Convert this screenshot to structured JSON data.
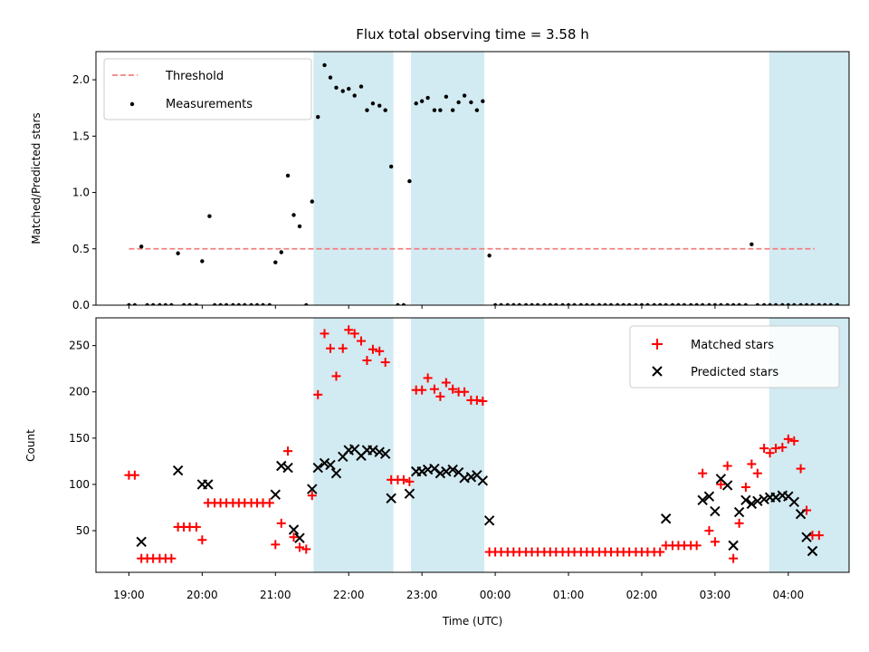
{
  "chart_data": {
    "type": "scatter",
    "title": "Flux total observing time = 3.58 h",
    "xlabel": "Time (UTC)",
    "x_ticks": [
      "19:00",
      "20:00",
      "21:00",
      "22:00",
      "23:00",
      "00:00",
      "01:00",
      "02:00",
      "03:00",
      "04:00"
    ],
    "x_tick_hours": [
      19,
      20,
      21,
      22,
      23,
      24,
      25,
      26,
      27,
      28
    ],
    "xlim_hours": [
      18.55,
      28.83
    ],
    "shaded_intervals_hours": [
      [
        21.52,
        22.61
      ],
      [
        22.85,
        23.85
      ],
      [
        27.74,
        29.26
      ]
    ],
    "colors": {
      "threshold": "#f08080",
      "measurements": "#000000",
      "matched": "#ff0000",
      "predicted": "#000000",
      "shade": "#add8e6"
    },
    "top": {
      "ylabel": "Matched/Predicted stars",
      "ylim": [
        0,
        2.25
      ],
      "yticks": [
        "0.0",
        "0.5",
        "1.0",
        "1.5",
        "2.0"
      ],
      "threshold": {
        "value": 0.5,
        "x_range_hours": [
          19.0,
          28.36
        ]
      },
      "legend": [
        "Threshold",
        "Measurements"
      ],
      "measurements": [
        [
          19.0,
          0.0
        ],
        [
          19.08,
          0.0
        ],
        [
          19.17,
          0.52
        ],
        [
          19.25,
          0.0
        ],
        [
          19.33,
          0.0
        ],
        [
          19.42,
          0.0
        ],
        [
          19.5,
          0.0
        ],
        [
          19.58,
          0.0
        ],
        [
          19.67,
          0.46
        ],
        [
          19.75,
          0.0
        ],
        [
          19.83,
          0.0
        ],
        [
          19.92,
          0.0
        ],
        [
          20.0,
          0.39
        ],
        [
          20.1,
          0.79
        ],
        [
          20.17,
          0.0
        ],
        [
          20.25,
          0.0
        ],
        [
          20.33,
          0.0
        ],
        [
          20.42,
          0.0
        ],
        [
          20.5,
          0.0
        ],
        [
          20.58,
          0.0
        ],
        [
          20.67,
          0.0
        ],
        [
          20.75,
          0.0
        ],
        [
          20.83,
          0.0
        ],
        [
          20.92,
          0.0
        ],
        [
          21.0,
          0.38
        ],
        [
          21.08,
          0.47
        ],
        [
          21.17,
          1.15
        ],
        [
          21.25,
          0.8
        ],
        [
          21.33,
          0.7
        ],
        [
          21.42,
          0.0
        ],
        [
          21.5,
          0.92
        ],
        [
          21.58,
          1.67
        ],
        [
          21.67,
          2.13
        ],
        [
          21.75,
          2.02
        ],
        [
          21.83,
          1.93
        ],
        [
          21.92,
          1.9
        ],
        [
          22.0,
          1.92
        ],
        [
          22.08,
          1.86
        ],
        [
          22.17,
          1.94
        ],
        [
          22.25,
          1.73
        ],
        [
          22.33,
          1.79
        ],
        [
          22.42,
          1.77
        ],
        [
          22.5,
          1.73
        ],
        [
          22.58,
          1.23
        ],
        [
          22.67,
          0.0
        ],
        [
          22.75,
          0.0
        ],
        [
          22.83,
          1.1
        ],
        [
          22.92,
          1.79
        ],
        [
          23.0,
          1.81
        ],
        [
          23.08,
          1.84
        ],
        [
          23.17,
          1.73
        ],
        [
          23.25,
          1.73
        ],
        [
          23.33,
          1.85
        ],
        [
          23.42,
          1.73
        ],
        [
          23.5,
          1.8
        ],
        [
          23.58,
          1.86
        ],
        [
          23.67,
          1.8
        ],
        [
          23.75,
          1.73
        ],
        [
          23.83,
          1.81
        ],
        [
          23.92,
          0.44
        ],
        [
          24.0,
          0.0
        ],
        [
          24.08,
          0.0
        ],
        [
          24.17,
          0.0
        ],
        [
          24.25,
          0.0
        ],
        [
          24.33,
          0.0
        ],
        [
          24.42,
          0.0
        ],
        [
          24.5,
          0.0
        ],
        [
          24.58,
          0.0
        ],
        [
          24.67,
          0.0
        ],
        [
          24.75,
          0.0
        ],
        [
          24.83,
          0.0
        ],
        [
          24.92,
          0.0
        ],
        [
          25.0,
          0.0
        ],
        [
          25.08,
          0.0
        ],
        [
          25.17,
          0.0
        ],
        [
          25.25,
          0.0
        ],
        [
          25.33,
          0.0
        ],
        [
          25.42,
          0.0
        ],
        [
          25.5,
          0.0
        ],
        [
          25.58,
          0.0
        ],
        [
          25.67,
          0.0
        ],
        [
          25.75,
          0.0
        ],
        [
          25.83,
          0.0
        ],
        [
          25.92,
          0.0
        ],
        [
          26.0,
          0.0
        ],
        [
          26.08,
          0.0
        ],
        [
          26.17,
          0.0
        ],
        [
          26.25,
          0.0
        ],
        [
          26.33,
          0.0
        ],
        [
          26.42,
          0.0
        ],
        [
          26.5,
          0.0
        ],
        [
          26.58,
          0.0
        ],
        [
          26.67,
          0.0
        ],
        [
          26.75,
          0.0
        ],
        [
          26.83,
          0.0
        ],
        [
          26.92,
          0.0
        ],
        [
          27.0,
          0.0
        ],
        [
          27.08,
          0.0
        ],
        [
          27.17,
          0.0
        ],
        [
          27.25,
          0.0
        ],
        [
          27.33,
          0.0
        ],
        [
          27.42,
          0.0
        ],
        [
          27.5,
          0.54
        ],
        [
          27.58,
          0.0
        ],
        [
          27.67,
          0.0
        ],
        [
          27.75,
          0.0
        ],
        [
          27.83,
          0.0
        ],
        [
          27.92,
          0.0
        ],
        [
          28.0,
          0.0
        ],
        [
          28.08,
          0.0
        ],
        [
          28.17,
          0.0
        ],
        [
          28.25,
          0.0
        ],
        [
          28.33,
          0.0
        ],
        [
          28.42,
          0.0
        ],
        [
          28.5,
          0.0
        ],
        [
          28.58,
          0.0
        ],
        [
          28.67,
          0.0
        ]
      ]
    },
    "bottom": {
      "ylabel": "Count",
      "ylim": [
        5,
        280
      ],
      "yticks": [
        "50",
        "100",
        "150",
        "200",
        "250"
      ],
      "legend": [
        "Matched stars",
        "Predicted stars"
      ],
      "matched": [
        [
          19.0,
          110
        ],
        [
          19.08,
          110
        ],
        [
          19.17,
          20
        ],
        [
          19.25,
          20
        ],
        [
          19.33,
          20
        ],
        [
          19.42,
          20
        ],
        [
          19.5,
          20
        ],
        [
          19.58,
          20
        ],
        [
          19.67,
          54
        ],
        [
          19.75,
          54
        ],
        [
          19.83,
          54
        ],
        [
          19.92,
          54
        ],
        [
          20.0,
          40
        ],
        [
          20.08,
          80
        ],
        [
          20.17,
          80
        ],
        [
          20.25,
          80
        ],
        [
          20.33,
          80
        ],
        [
          20.42,
          80
        ],
        [
          20.5,
          80
        ],
        [
          20.58,
          80
        ],
        [
          20.67,
          80
        ],
        [
          20.75,
          80
        ],
        [
          20.83,
          80
        ],
        [
          20.92,
          80
        ],
        [
          21.0,
          35
        ],
        [
          21.08,
          58
        ],
        [
          21.17,
          136
        ],
        [
          21.25,
          43
        ],
        [
          21.33,
          32
        ],
        [
          21.42,
          30
        ],
        [
          21.5,
          88
        ],
        [
          21.58,
          197
        ],
        [
          21.67,
          263
        ],
        [
          21.75,
          247
        ],
        [
          21.83,
          217
        ],
        [
          21.92,
          247
        ],
        [
          22.0,
          267
        ],
        [
          22.08,
          263
        ],
        [
          22.17,
          255
        ],
        [
          22.25,
          234
        ],
        [
          22.33,
          246
        ],
        [
          22.42,
          244
        ],
        [
          22.5,
          232
        ],
        [
          22.58,
          105
        ],
        [
          22.67,
          105
        ],
        [
          22.75,
          105
        ],
        [
          22.83,
          103
        ],
        [
          22.92,
          202
        ],
        [
          23.0,
          202
        ],
        [
          23.08,
          215
        ],
        [
          23.17,
          203
        ],
        [
          23.25,
          195
        ],
        [
          23.33,
          210
        ],
        [
          23.42,
          203
        ],
        [
          23.5,
          200
        ],
        [
          23.58,
          200
        ],
        [
          23.67,
          191
        ],
        [
          23.75,
          191
        ],
        [
          23.83,
          190
        ],
        [
          23.92,
          27
        ],
        [
          24.0,
          27
        ],
        [
          24.08,
          27
        ],
        [
          24.17,
          27
        ],
        [
          24.25,
          27
        ],
        [
          24.33,
          27
        ],
        [
          24.42,
          27
        ],
        [
          24.5,
          27
        ],
        [
          24.58,
          27
        ],
        [
          24.67,
          27
        ],
        [
          24.75,
          27
        ],
        [
          24.83,
          27
        ],
        [
          24.92,
          27
        ],
        [
          25.0,
          27
        ],
        [
          25.08,
          27
        ],
        [
          25.17,
          27
        ],
        [
          25.25,
          27
        ],
        [
          25.33,
          27
        ],
        [
          25.42,
          27
        ],
        [
          25.5,
          27
        ],
        [
          25.58,
          27
        ],
        [
          25.67,
          27
        ],
        [
          25.75,
          27
        ],
        [
          25.83,
          27
        ],
        [
          25.92,
          27
        ],
        [
          26.0,
          27
        ],
        [
          26.08,
          27
        ],
        [
          26.17,
          27
        ],
        [
          26.25,
          27
        ],
        [
          26.33,
          34
        ],
        [
          26.42,
          34
        ],
        [
          26.5,
          34
        ],
        [
          26.58,
          34
        ],
        [
          26.67,
          34
        ],
        [
          26.75,
          34
        ],
        [
          26.83,
          112
        ],
        [
          26.92,
          50
        ],
        [
          27.0,
          38
        ],
        [
          27.08,
          100
        ],
        [
          27.17,
          120
        ],
        [
          27.25,
          20
        ],
        [
          27.33,
          58
        ],
        [
          27.42,
          97
        ],
        [
          27.5,
          122
        ],
        [
          27.58,
          112
        ],
        [
          27.67,
          139
        ],
        [
          27.75,
          134
        ],
        [
          27.83,
          139
        ],
        [
          27.92,
          140
        ],
        [
          28.0,
          149
        ],
        [
          28.08,
          147
        ],
        [
          28.17,
          117
        ],
        [
          28.25,
          72
        ],
        [
          28.33,
          45
        ],
        [
          28.42,
          45
        ]
      ],
      "predicted": [
        [
          19.17,
          38
        ],
        [
          19.67,
          115
        ],
        [
          20.0,
          100
        ],
        [
          20.08,
          100
        ],
        [
          21.0,
          89
        ],
        [
          21.08,
          120
        ],
        [
          21.17,
          118
        ],
        [
          21.25,
          51
        ],
        [
          21.33,
          42
        ],
        [
          21.5,
          95
        ],
        [
          21.58,
          118
        ],
        [
          21.67,
          123
        ],
        [
          21.75,
          121
        ],
        [
          21.83,
          112
        ],
        [
          21.92,
          130
        ],
        [
          22.0,
          137
        ],
        [
          22.08,
          138
        ],
        [
          22.17,
          131
        ],
        [
          22.25,
          137
        ],
        [
          22.33,
          137
        ],
        [
          22.42,
          135
        ],
        [
          22.5,
          133
        ],
        [
          22.58,
          85
        ],
        [
          22.83,
          90
        ],
        [
          22.92,
          114
        ],
        [
          23.0,
          114
        ],
        [
          23.08,
          116
        ],
        [
          23.17,
          117
        ],
        [
          23.25,
          112
        ],
        [
          23.33,
          114
        ],
        [
          23.42,
          116
        ],
        [
          23.5,
          113
        ],
        [
          23.58,
          107
        ],
        [
          23.67,
          108
        ],
        [
          23.75,
          110
        ],
        [
          23.83,
          104
        ],
        [
          23.92,
          61
        ],
        [
          26.33,
          63
        ],
        [
          26.83,
          83
        ],
        [
          26.92,
          87
        ],
        [
          27.0,
          71
        ],
        [
          27.08,
          106
        ],
        [
          27.17,
          99
        ],
        [
          27.25,
          34
        ],
        [
          27.33,
          70
        ],
        [
          27.42,
          83
        ],
        [
          27.5,
          79
        ],
        [
          27.58,
          82
        ],
        [
          27.67,
          84
        ],
        [
          27.75,
          86
        ],
        [
          27.83,
          86
        ],
        [
          27.92,
          88
        ],
        [
          28.0,
          87
        ],
        [
          28.08,
          81
        ],
        [
          28.17,
          68
        ],
        [
          28.25,
          43
        ],
        [
          28.33,
          28
        ]
      ]
    }
  }
}
